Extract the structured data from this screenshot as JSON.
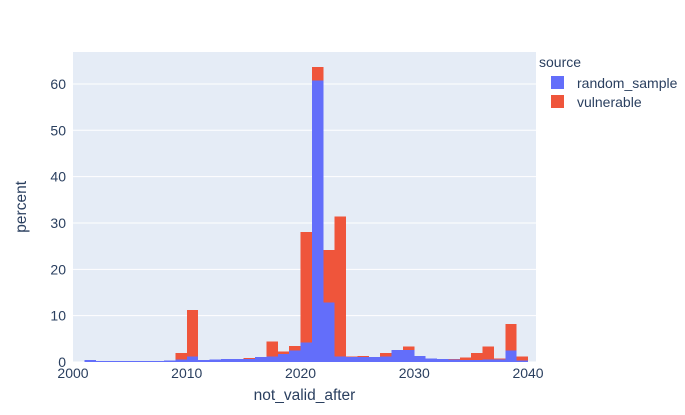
{
  "ui": {
    "page_bg": "#ffffff",
    "plot_bg": "#E5ECF6",
    "grid_color": "#ffffff",
    "text_color": "#2a3f5f"
  },
  "legend": {
    "title": "source",
    "items": [
      {
        "label": "random_sample",
        "color": "#636EFA"
      },
      {
        "label": "vulnerable",
        "color": "#EF553B"
      }
    ]
  },
  "chart_data": {
    "type": "bar",
    "subtype": "overlaid-histogram-percent",
    "title": "",
    "xlabel": "not_valid_after",
    "ylabel": "percent",
    "legend_title": "source",
    "legend_position": "top-right-outside",
    "grid": true,
    "xlim": [
      2000,
      2040.7
    ],
    "ylim": [
      0,
      66.9
    ],
    "xticks": [
      2000,
      2010,
      2020,
      2030,
      2040
    ],
    "xticklabels": [
      "2000",
      "2010",
      "2020",
      "2030",
      "2040"
    ],
    "yticks": [
      0,
      10,
      20,
      30,
      40,
      50,
      60
    ],
    "yticklabels": [
      "0",
      "10",
      "20",
      "30",
      "40",
      "50",
      "60"
    ],
    "bin_start_year": 2000,
    "bin_width_years": 1,
    "bin_years": [
      2000,
      2001,
      2002,
      2003,
      2004,
      2005,
      2006,
      2007,
      2008,
      2009,
      2010,
      2011,
      2012,
      2013,
      2014,
      2015,
      2016,
      2017,
      2018,
      2019,
      2020,
      2021,
      2022,
      2023,
      2024,
      2025,
      2026,
      2027,
      2028,
      2029,
      2030,
      2031,
      2032,
      2033,
      2034,
      2035,
      2036,
      2037,
      2038,
      2039
    ],
    "render_order": [
      "vulnerable",
      "random_sample"
    ],
    "series": [
      {
        "name": "random_sample",
        "color": "#636EFA",
        "values": [
          0,
          0.4,
          0.2,
          0.25,
          0.25,
          0.25,
          0.25,
          0.25,
          0.3,
          0.5,
          1.2,
          0.4,
          0.5,
          0.6,
          0.65,
          0.7,
          1.1,
          1.15,
          1.7,
          2.5,
          4.2,
          60.8,
          12.8,
          1.2,
          1.1,
          1.1,
          1.1,
          1.2,
          2.6,
          2.6,
          1.3,
          0.8,
          0.6,
          0.5,
          0.4,
          0.4,
          0.5,
          0.5,
          2.5,
          0.3
        ]
      },
      {
        "name": "vulnerable",
        "color": "#EF553B",
        "values": [
          0,
          0,
          0,
          0,
          0,
          0,
          0,
          0,
          0,
          1.9,
          11.2,
          0.3,
          0.3,
          0.4,
          0.5,
          0.85,
          0.5,
          4.4,
          2.3,
          3.5,
          28.1,
          63.7,
          24.2,
          31.4,
          1.2,
          1.3,
          0.9,
          1.9,
          2.4,
          3.3,
          0.7,
          0.5,
          0.4,
          0.7,
          1.0,
          1.9,
          3.3,
          0.8,
          8.2,
          1.2
        ]
      }
    ]
  }
}
